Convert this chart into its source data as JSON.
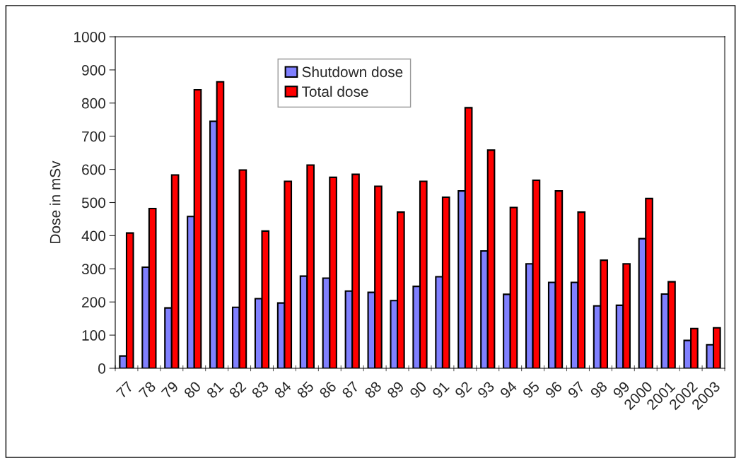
{
  "chart_data": {
    "type": "bar",
    "ylabel": "Dose in mSv",
    "categories": [
      "77",
      "78",
      "79",
      "80",
      "81",
      "82",
      "83",
      "84",
      "85",
      "86",
      "87",
      "88",
      "89",
      "90",
      "91",
      "92",
      "93",
      "94",
      "95",
      "96",
      "97",
      "98",
      "99",
      "2000",
      "2001",
      "2002",
      "2003"
    ],
    "series": [
      {
        "name": "Shutdown dose",
        "color": "#8080ff",
        "values": [
          37,
          305,
          182,
          458,
          745,
          184,
          210,
          197,
          278,
          272,
          233,
          229,
          204,
          247,
          276,
          535,
          354,
          223,
          315,
          259,
          259,
          188,
          190,
          391,
          224,
          84,
          71
        ]
      },
      {
        "name": "Total dose",
        "color": "#ff0000",
        "values": [
          408,
          482,
          583,
          840,
          864,
          598,
          414,
          564,
          613,
          576,
          585,
          549,
          471,
          564,
          516,
          786,
          658,
          485,
          567,
          535,
          471,
          326,
          315,
          512,
          261,
          120,
          122
        ]
      }
    ],
    "ylim": [
      0,
      1000
    ],
    "yticks": [
      0,
      100,
      200,
      300,
      400,
      500,
      600,
      700,
      800,
      900,
      1000
    ],
    "grid": false,
    "legend": "top"
  }
}
